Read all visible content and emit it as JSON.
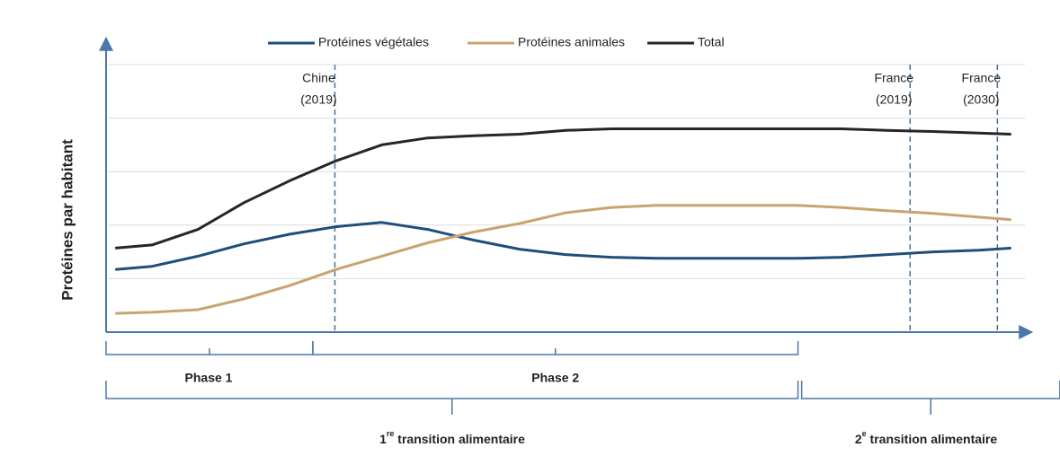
{
  "chart_data": {
    "type": "line",
    "y_label": "Protéines par habitant",
    "xlim": [
      0,
      100
    ],
    "ylim": [
      0,
      5
    ],
    "yticks": [
      1,
      2,
      3,
      4,
      5
    ],
    "grid": true,
    "legend": "top",
    "x": [
      1,
      5,
      10,
      15,
      20,
      25,
      30,
      35,
      40,
      45,
      50,
      55,
      60,
      65,
      70,
      75,
      80,
      85,
      90,
      95,
      98.5
    ],
    "series": [
      {
        "name": "Protéines végétales",
        "color": "#1f4e79",
        "values": [
          1.17,
          1.23,
          1.42,
          1.65,
          1.83,
          1.97,
          2.05,
          1.92,
          1.72,
          1.55,
          1.45,
          1.4,
          1.38,
          1.38,
          1.38,
          1.38,
          1.4,
          1.45,
          1.5,
          1.53,
          1.57
        ]
      },
      {
        "name": "Protéines animales",
        "color": "#c8a46e",
        "values": [
          0.35,
          0.37,
          0.42,
          0.62,
          0.87,
          1.17,
          1.42,
          1.67,
          1.87,
          2.03,
          2.23,
          2.33,
          2.37,
          2.37,
          2.37,
          2.37,
          2.33,
          2.27,
          2.22,
          2.15,
          2.1
        ]
      },
      {
        "name": "Total",
        "color": "#262626",
        "values": [
          1.57,
          1.63,
          1.92,
          2.42,
          2.83,
          3.2,
          3.5,
          3.63,
          3.67,
          3.7,
          3.77,
          3.8,
          3.8,
          3.8,
          3.8,
          3.8,
          3.8,
          3.77,
          3.75,
          3.72,
          3.7
        ]
      }
    ],
    "markers": [
      {
        "lines": [
          "Chine",
          "(2019)"
        ],
        "x": 24.9
      },
      {
        "lines": [
          "France",
          "(2019)"
        ],
        "x": 87.5
      },
      {
        "lines": [
          "France",
          "(2030)"
        ],
        "x": 97
      }
    ],
    "phases": [
      {
        "label": "Phase 1",
        "from": 0,
        "to": 22.5
      },
      {
        "label": "Phase 2",
        "from": 22.5,
        "to": 75.3
      }
    ],
    "transitions": [
      {
        "number": "1",
        "sup": "re",
        "text": " transition alimentaire",
        "from": 0,
        "to": 75.3
      },
      {
        "number": "2",
        "sup": "e",
        "text": " transition alimentaire",
        "from": 75.7,
        "to": 103.8
      }
    ]
  }
}
